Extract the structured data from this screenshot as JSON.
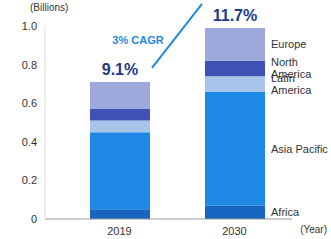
{
  "chart_data": {
    "type": "bar",
    "stacked": true,
    "categories": [
      "2019",
      "2030"
    ],
    "series": [
      {
        "name": "Africa",
        "color": "#1565c0",
        "values": [
          0.05,
          0.07
        ]
      },
      {
        "name": "Asia Pacific",
        "color": "#1e88e5",
        "values": [
          0.4,
          0.59
        ]
      },
      {
        "name": "Latin America",
        "color": "#a9c5ec",
        "values": [
          0.06,
          0.08
        ]
      },
      {
        "name": "North America",
        "color": "#3f51b5",
        "values": [
          0.06,
          0.08
        ]
      },
      {
        "name": "Europe",
        "color": "#9fa8da",
        "values": [
          0.14,
          0.17
        ]
      }
    ],
    "ylim": [
      0,
      1
    ],
    "yticks": [
      0,
      0.2,
      0.4,
      0.6,
      0.8,
      {
        "value": 1,
        "label": "1.0"
      }
    ],
    "y_label": "(Billions)",
    "x_label": "(Year)",
    "annotations": {
      "totals": [
        "9.1%",
        "11.7%"
      ],
      "growth": "3% CAGR"
    }
  }
}
